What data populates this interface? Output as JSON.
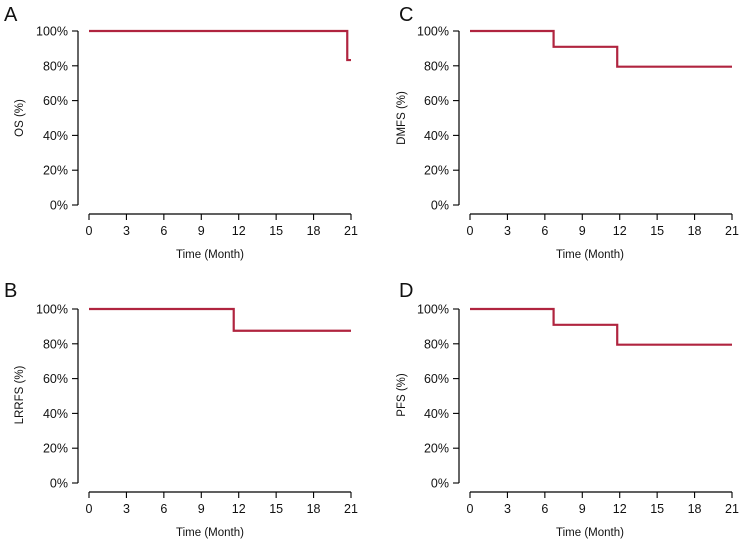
{
  "colors": {
    "curve": "#b0243f"
  },
  "chart_data": [
    {
      "type": "line",
      "panel": "A",
      "title": "",
      "xlabel": "Time (Month)",
      "ylabel": "OS (%)",
      "xlim": [
        0,
        21
      ],
      "ylim": [
        0,
        100
      ],
      "xticks": [
        "0",
        "3",
        "6",
        "9",
        "12",
        "15",
        "18",
        "21"
      ],
      "yticks": [
        "0%",
        "20%",
        "40%",
        "60%",
        "80%",
        "100%"
      ],
      "series": [
        {
          "name": "OS",
          "x": [
            0,
            20.7,
            20.7,
            21
          ],
          "y": [
            100,
            100,
            83.3,
            83.3
          ]
        }
      ]
    },
    {
      "type": "line",
      "panel": "B",
      "title": "",
      "xlabel": "Time (Month)",
      "ylabel": "LRRFS (%)",
      "xlim": [
        0,
        21
      ],
      "ylim": [
        0,
        100
      ],
      "xticks": [
        "0",
        "3",
        "6",
        "9",
        "12",
        "15",
        "18",
        "21"
      ],
      "yticks": [
        "0%",
        "20%",
        "40%",
        "60%",
        "80%",
        "100%"
      ],
      "series": [
        {
          "name": "LRRFS",
          "x": [
            0,
            11.6,
            11.6,
            21
          ],
          "y": [
            100,
            100,
            87.5,
            87.5
          ]
        }
      ]
    },
    {
      "type": "line",
      "panel": "C",
      "title": "",
      "xlabel": "Time (Month)",
      "ylabel": "DMFS (%)",
      "xlim": [
        0,
        21
      ],
      "ylim": [
        0,
        100
      ],
      "xticks": [
        "0",
        "3",
        "6",
        "9",
        "12",
        "15",
        "18",
        "21"
      ],
      "yticks": [
        "0%",
        "20%",
        "40%",
        "60%",
        "80%",
        "100%"
      ],
      "series": [
        {
          "name": "DMFS",
          "x": [
            0,
            6.7,
            6.7,
            11.8,
            11.8,
            21
          ],
          "y": [
            100,
            100,
            90.9,
            90.9,
            79.5,
            79.5
          ]
        }
      ]
    },
    {
      "type": "line",
      "panel": "D",
      "title": "",
      "xlabel": "Time (Month)",
      "ylabel": "PFS (%)",
      "xlim": [
        0,
        21
      ],
      "ylim": [
        0,
        100
      ],
      "xticks": [
        "0",
        "3",
        "6",
        "9",
        "12",
        "15",
        "18",
        "21"
      ],
      "yticks": [
        "0%",
        "20%",
        "40%",
        "60%",
        "80%",
        "100%"
      ],
      "series": [
        {
          "name": "PFS",
          "x": [
            0,
            6.7,
            6.7,
            11.8,
            11.8,
            21
          ],
          "y": [
            100,
            100,
            90.9,
            90.9,
            79.5,
            79.5
          ]
        }
      ]
    }
  ]
}
